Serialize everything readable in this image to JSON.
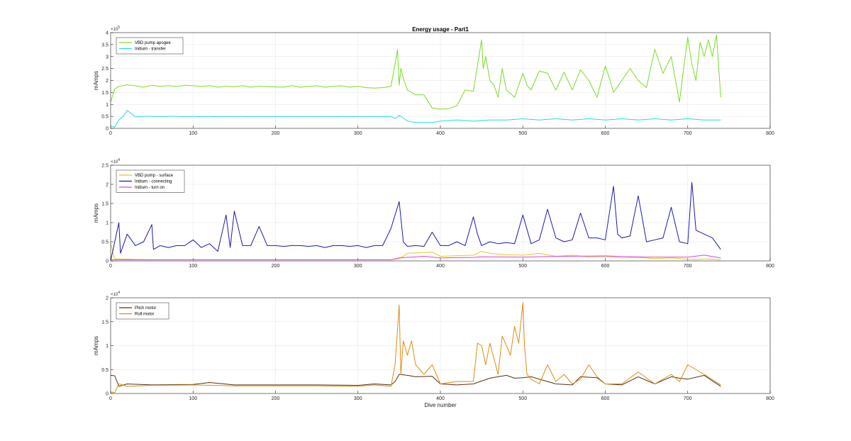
{
  "title": "Energy usage - Part1",
  "xlabel": "Dive number",
  "chart_data": [
    {
      "type": "line",
      "title": "Energy usage - Part1",
      "xlabel": "",
      "ylabel": "mAmps",
      "xlim": [
        0,
        800
      ],
      "ylim": [
        0,
        400000
      ],
      "y_exponent": "×10",
      "y_exponent_power": "5",
      "xticks": [
        "0",
        "100",
        "200",
        "300",
        "400",
        "500",
        "600",
        "700",
        "800"
      ],
      "yticks": [
        "0",
        "0.5",
        "1",
        "1.5",
        "2",
        "2.5",
        "3",
        "3.5",
        "4"
      ],
      "grid": true,
      "legend_location": "top-left",
      "series": [
        {
          "name": "VBD pump apogee",
          "color": "#77dd22",
          "x": [
            0,
            5,
            10,
            20,
            30,
            40,
            50,
            60,
            70,
            80,
            90,
            100,
            110,
            120,
            130,
            140,
            150,
            160,
            170,
            180,
            190,
            200,
            210,
            220,
            230,
            240,
            250,
            260,
            270,
            280,
            290,
            300,
            310,
            320,
            330,
            340,
            345,
            348,
            350,
            352,
            355,
            360,
            370,
            380,
            390,
            400,
            410,
            420,
            430,
            440,
            450,
            452,
            455,
            460,
            465,
            470,
            475,
            480,
            490,
            500,
            505,
            510,
            520,
            530,
            540,
            550,
            560,
            570,
            580,
            590,
            600,
            605,
            610,
            620,
            630,
            640,
            650,
            660,
            670,
            680,
            690,
            695,
            700,
            705,
            710,
            715,
            720,
            725,
            730,
            735,
            740
          ],
          "y": [
            110000,
            165000,
            175000,
            182000,
            178000,
            172000,
            180000,
            176000,
            178000,
            175000,
            180000,
            178000,
            175000,
            178000,
            172000,
            176000,
            174000,
            178000,
            172000,
            176000,
            174000,
            173000,
            172000,
            178000,
            172000,
            175000,
            178000,
            172000,
            175000,
            178000,
            172000,
            176000,
            170000,
            168000,
            170000,
            175000,
            270000,
            330000,
            180000,
            250000,
            210000,
            160000,
            140000,
            140000,
            85000,
            80000,
            82000,
            95000,
            160000,
            155000,
            370000,
            250000,
            300000,
            200000,
            180000,
            130000,
            250000,
            160000,
            130000,
            230000,
            180000,
            160000,
            240000,
            230000,
            160000,
            235000,
            160000,
            245000,
            200000,
            130000,
            260000,
            210000,
            150000,
            200000,
            250000,
            200000,
            170000,
            330000,
            230000,
            300000,
            110000,
            250000,
            380000,
            270000,
            200000,
            360000,
            300000,
            370000,
            300000,
            390000,
            130000
          ]
        },
        {
          "name": "Iridium - transfer",
          "color": "#22dddd",
          "x": [
            0,
            5,
            10,
            15,
            20,
            30,
            40,
            50,
            60,
            70,
            80,
            90,
            100,
            110,
            120,
            130,
            140,
            150,
            160,
            170,
            180,
            190,
            200,
            210,
            220,
            230,
            240,
            250,
            260,
            270,
            280,
            290,
            300,
            310,
            320,
            330,
            340,
            345,
            350,
            360,
            370,
            380,
            390,
            400,
            420,
            440,
            460,
            480,
            500,
            520,
            540,
            560,
            580,
            600,
            620,
            640,
            660,
            680,
            700,
            720,
            740
          ],
          "y": [
            10000,
            5000,
            35000,
            50000,
            75000,
            48000,
            50000,
            50000,
            48000,
            50000,
            50000,
            48000,
            50000,
            48000,
            50000,
            48000,
            50000,
            48000,
            50000,
            48000,
            50000,
            48000,
            50000,
            48000,
            50000,
            48000,
            50000,
            48000,
            50000,
            48000,
            50000,
            48000,
            50000,
            48000,
            50000,
            48000,
            50000,
            40000,
            55000,
            30000,
            25000,
            25000,
            25000,
            30000,
            35000,
            30000,
            35000,
            35000,
            40000,
            35000,
            40000,
            35000,
            40000,
            35000,
            40000,
            35000,
            40000,
            35000,
            40000,
            35000,
            35000
          ]
        }
      ]
    },
    {
      "type": "line",
      "title": "",
      "xlabel": "",
      "ylabel": "mAmps",
      "xlim": [
        0,
        800
      ],
      "ylim": [
        0,
        25000
      ],
      "y_exponent": "×10",
      "y_exponent_power": "4",
      "xticks": [
        "0",
        "100",
        "200",
        "300",
        "400",
        "500",
        "600",
        "700",
        "800"
      ],
      "yticks": [
        "0",
        "0.5",
        "1",
        "1.5",
        "2",
        "2.5"
      ],
      "grid": true,
      "legend_location": "top-left",
      "series": [
        {
          "name": "VBD pump - surface",
          "color": "#e8c81a",
          "x": [
            0,
            5,
            10,
            50,
            100,
            150,
            200,
            250,
            300,
            340,
            350,
            360,
            380,
            390,
            400,
            440,
            450,
            460,
            480,
            500,
            520,
            540,
            560,
            580,
            600,
            620,
            640,
            660,
            680,
            700,
            710,
            720,
            740
          ],
          "y": [
            4500,
            500,
            500,
            300,
            300,
            300,
            300,
            300,
            300,
            300,
            500,
            2000,
            2200,
            2300,
            1200,
            1500,
            2500,
            2000,
            1600,
            1500,
            2000,
            1200,
            1500,
            1000,
            1200,
            800,
            900,
            600,
            800,
            400,
            300,
            500,
            300
          ]
        },
        {
          "name": "Iridium - connecting",
          "color": "#1a1ab0",
          "x": [
            0,
            10,
            12,
            20,
            30,
            40,
            50,
            52,
            60,
            70,
            80,
            90,
            100,
            110,
            120,
            130,
            140,
            145,
            150,
            160,
            170,
            180,
            190,
            200,
            210,
            220,
            230,
            240,
            250,
            260,
            270,
            280,
            290,
            300,
            310,
            320,
            330,
            340,
            350,
            355,
            360,
            370,
            380,
            390,
            400,
            410,
            420,
            430,
            440,
            445,
            450,
            460,
            470,
            480,
            490,
            500,
            510,
            520,
            530,
            540,
            550,
            560,
            570,
            580,
            590,
            600,
            610,
            615,
            620,
            630,
            640,
            650,
            660,
            670,
            680,
            690,
            700,
            705,
            710,
            720,
            730,
            740
          ],
          "y": [
            0,
            10000,
            2000,
            7000,
            4000,
            5000,
            9500,
            3000,
            4000,
            3500,
            4000,
            4000,
            5500,
            3500,
            4500,
            2500,
            12000,
            3500,
            13000,
            4000,
            4000,
            9000,
            4000,
            4000,
            3800,
            4000,
            4000,
            3800,
            4000,
            3500,
            4000,
            4000,
            3800,
            4000,
            3500,
            4000,
            4000,
            8500,
            15500,
            5000,
            3800,
            4000,
            3800,
            7500,
            4000,
            4000,
            5000,
            4000,
            11500,
            7000,
            4000,
            5000,
            4500,
            4800,
            4500,
            12000,
            4500,
            5500,
            13500,
            6000,
            5000,
            5500,
            12500,
            6000,
            6000,
            5500,
            19500,
            7000,
            6000,
            6500,
            17000,
            5000,
            5500,
            6000,
            14000,
            5000,
            4500,
            20500,
            8000,
            7000,
            6000,
            3000
          ]
        },
        {
          "name": "Iridium - turn on",
          "color": "#dd44dd",
          "x": [
            0,
            50,
            100,
            150,
            200,
            250,
            300,
            340,
            350,
            380,
            390,
            400,
            440,
            450,
            500,
            550,
            600,
            650,
            700,
            720,
            740
          ],
          "y": [
            300,
            300,
            300,
            300,
            300,
            300,
            300,
            300,
            800,
            1200,
            1000,
            800,
            900,
            1100,
            1000,
            1200,
            1300,
            1000,
            1000,
            1500,
            800
          ]
        }
      ]
    },
    {
      "type": "line",
      "title": "",
      "xlabel": "Dive number",
      "ylabel": "mAmps",
      "xlim": [
        0,
        800
      ],
      "ylim": [
        0,
        20000
      ],
      "y_exponent": "×10",
      "y_exponent_power": "4",
      "xticks": [
        "0",
        "100",
        "200",
        "300",
        "400",
        "500",
        "600",
        "700",
        "800"
      ],
      "yticks": [
        "0",
        "0.5",
        "1",
        "1.5",
        "2"
      ],
      "grid": true,
      "legend_location": "top-left",
      "series": [
        {
          "name": "Pitch motor",
          "color": "#5a2e10",
          "x": [
            0,
            5,
            10,
            20,
            50,
            100,
            120,
            150,
            200,
            250,
            300,
            320,
            340,
            345,
            350,
            360,
            370,
            390,
            400,
            420,
            440,
            460,
            470,
            480,
            490,
            500,
            510,
            540,
            560,
            570,
            590,
            600,
            620,
            640,
            660,
            680,
            690,
            700,
            720,
            740
          ],
          "y": [
            3800,
            3700,
            1500,
            2000,
            1800,
            1900,
            2300,
            1800,
            1800,
            1800,
            1700,
            2000,
            1800,
            2500,
            4000,
            3800,
            3500,
            3600,
            2000,
            1800,
            2000,
            3200,
            3500,
            3800,
            3200,
            3300,
            3500,
            2000,
            1800,
            3500,
            3300,
            2000,
            1800,
            3500,
            2000,
            3500,
            3200,
            3000,
            3800,
            1500
          ]
        },
        {
          "name": "Roll motor",
          "color": "#e08c10",
          "x": [
            0,
            5,
            10,
            20,
            50,
            100,
            150,
            200,
            250,
            300,
            320,
            340,
            345,
            350,
            352,
            355,
            360,
            365,
            370,
            380,
            390,
            400,
            420,
            440,
            445,
            450,
            455,
            460,
            470,
            475,
            480,
            485,
            490,
            495,
            500,
            502,
            505,
            510,
            520,
            530,
            540,
            550,
            560,
            570,
            580,
            590,
            600,
            620,
            640,
            660,
            680,
            690,
            700,
            720,
            740
          ],
          "y": [
            300,
            200,
            2000,
            1500,
            1700,
            1800,
            1600,
            1600,
            1600,
            1500,
            1800,
            1500,
            6000,
            18500,
            4000,
            11000,
            8000,
            11000,
            6000,
            4000,
            6000,
            2000,
            2500,
            2500,
            10500,
            10000,
            6000,
            10500,
            4000,
            12000,
            10000,
            8000,
            14000,
            10500,
            19000,
            10000,
            4000,
            3000,
            2000,
            6000,
            2500,
            4000,
            2000,
            3000,
            6000,
            3500,
            2000,
            2000,
            4500,
            2000,
            4000,
            2500,
            6000,
            4000,
            1800
          ]
        }
      ]
    }
  ]
}
